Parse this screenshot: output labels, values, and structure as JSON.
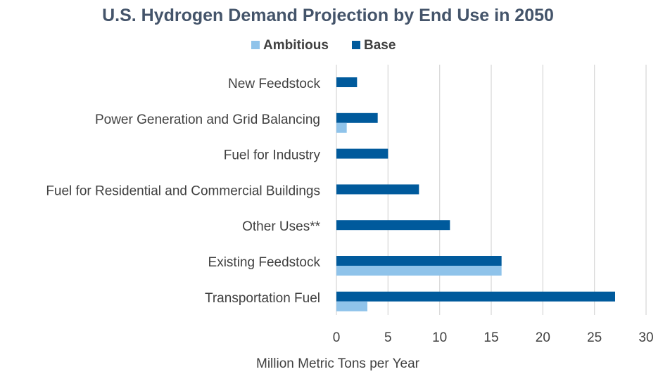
{
  "chart_data": {
    "type": "bar",
    "orientation": "horizontal",
    "title": "U.S. Hydrogen Demand Projection by End Use in 2050",
    "xlabel": "Million Metric Tons per Year",
    "ylabel": "",
    "xlim": [
      0,
      30
    ],
    "xticks": [
      0,
      5,
      10,
      15,
      20,
      25,
      30
    ],
    "grid": true,
    "legend_position": "top",
    "categories": [
      "New Feedstock",
      "Power Generation and Grid Balancing",
      "Fuel for Industry",
      "Fuel for Residential and Commercial Buildings",
      "Other Uses**",
      "Existing Feedstock",
      "Transportation Fuel"
    ],
    "series": [
      {
        "name": "Ambitious",
        "color": "#8fc3ea",
        "values": [
          0,
          1,
          0,
          0,
          0,
          16,
          3
        ]
      },
      {
        "name": "Base",
        "color": "#005a9c",
        "values": [
          2,
          4,
          5,
          8,
          11,
          16,
          27
        ]
      }
    ]
  }
}
